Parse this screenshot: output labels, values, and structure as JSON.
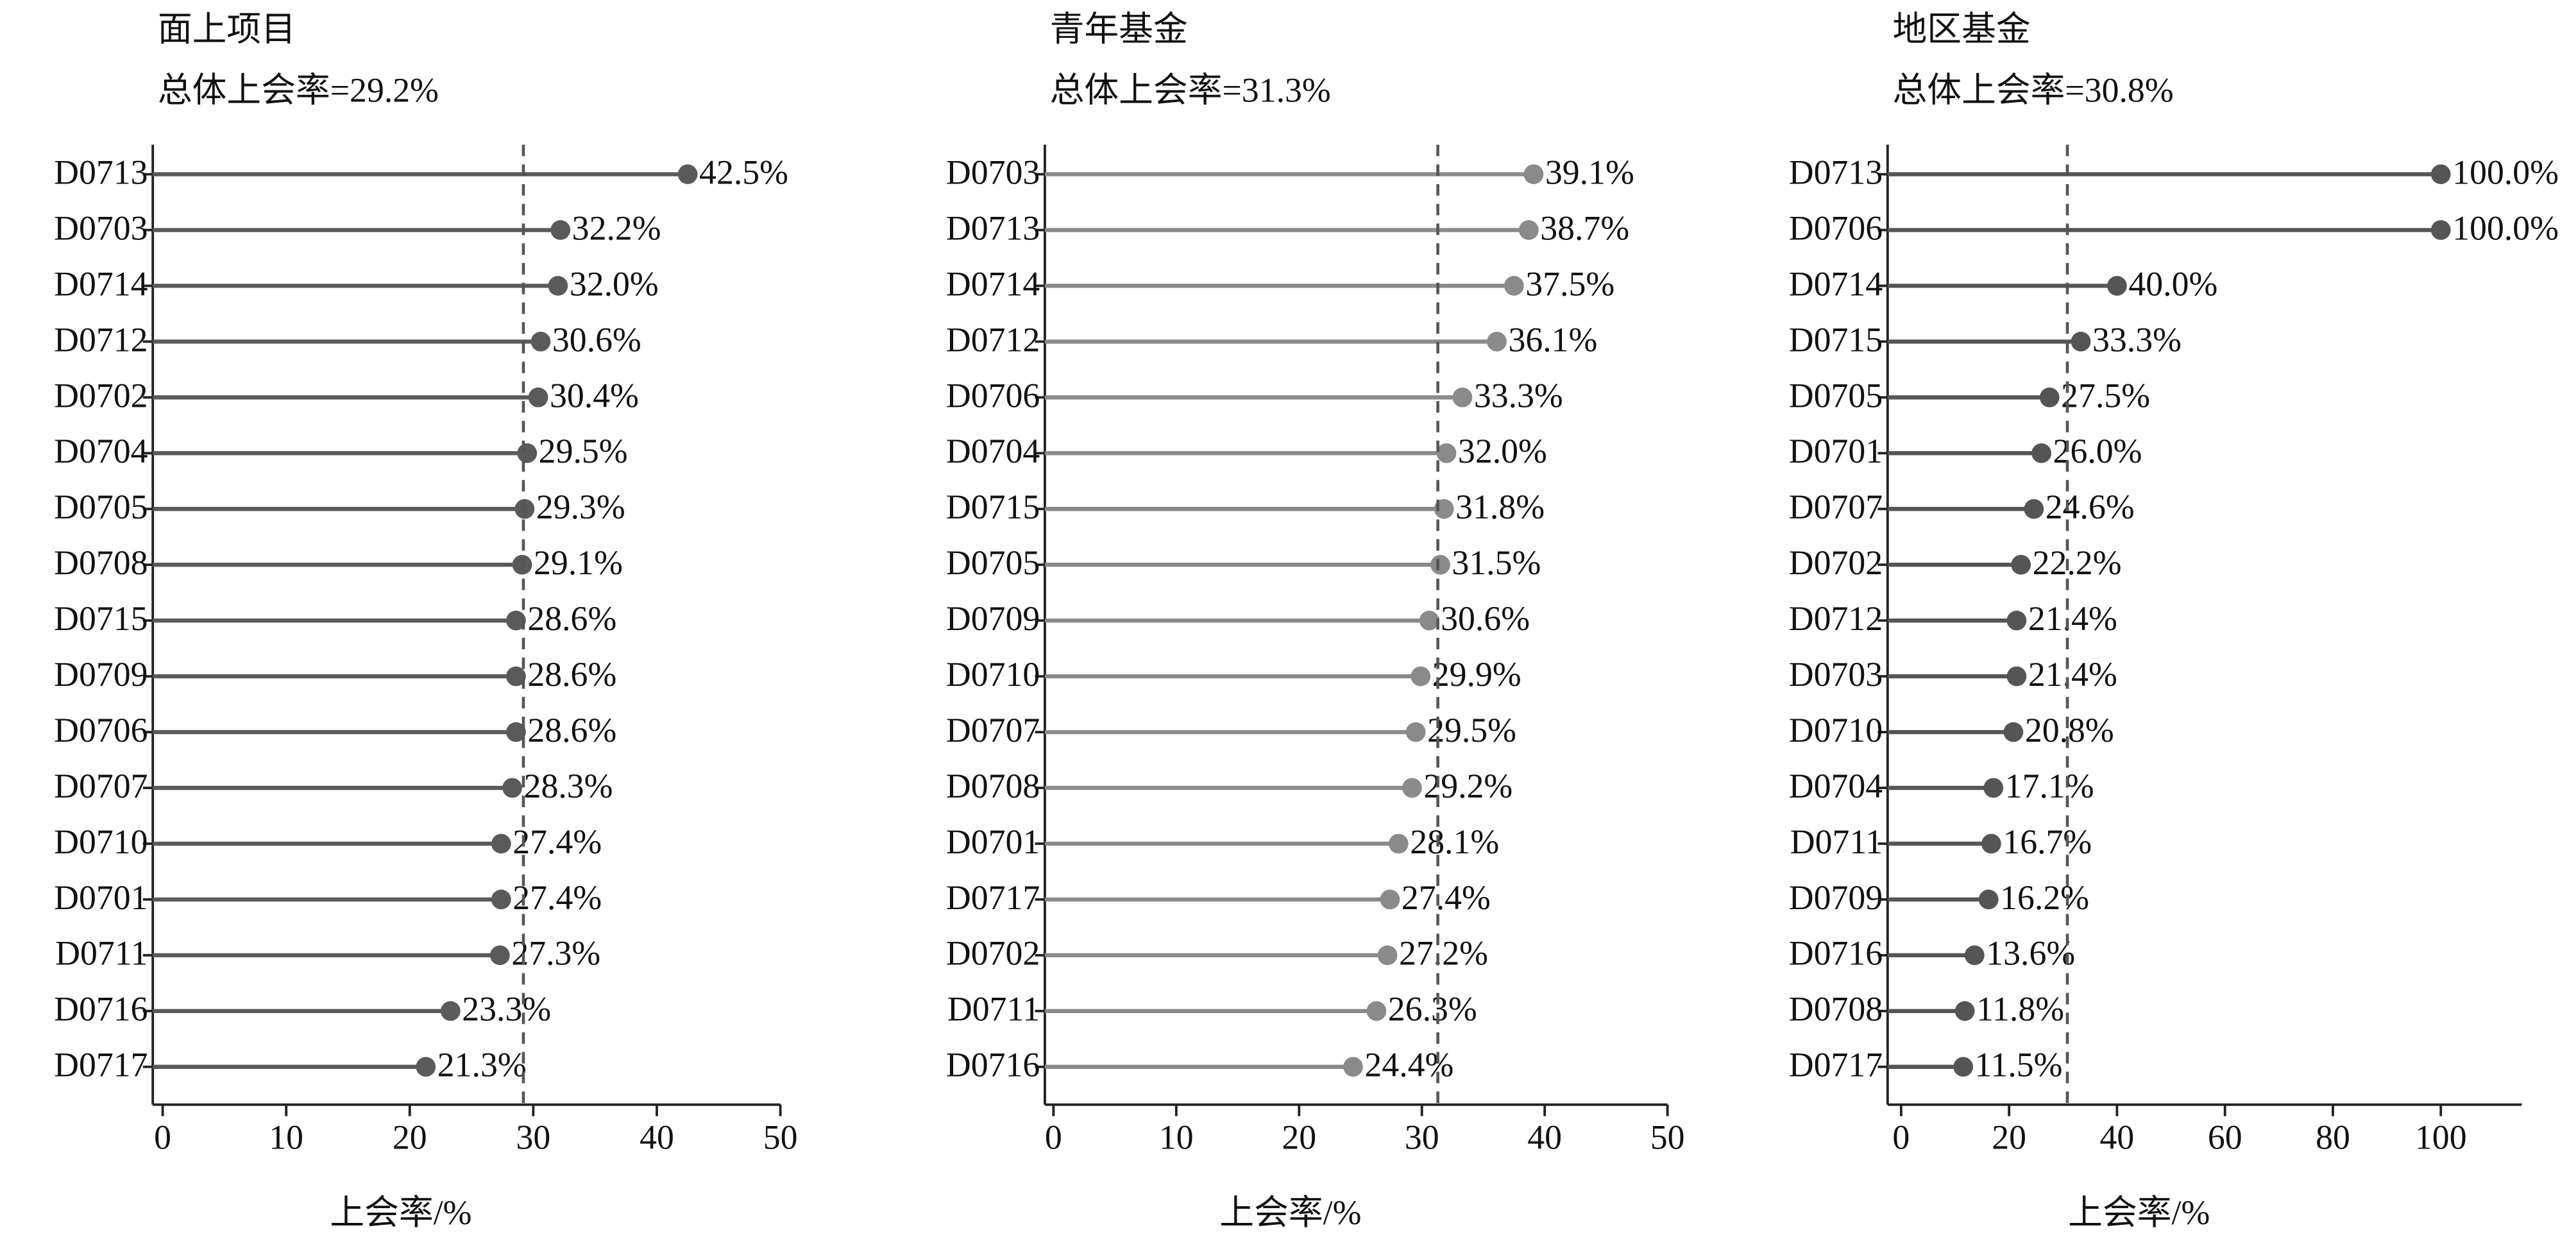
{
  "chart_data": [
    {
      "type": "lollipop",
      "title": "面上项目",
      "subtitle": "总体上会率=29.2%",
      "reference": 29.2,
      "categories": [
        "D0713",
        "D0703",
        "D0714",
        "D0712",
        "D0702",
        "D0704",
        "D0705",
        "D0708",
        "D0715",
        "D0709",
        "D0706",
        "D0707",
        "D0710",
        "D0701",
        "D0711",
        "D0716",
        "D0717"
      ],
      "values": [
        42.5,
        32.2,
        32.0,
        30.6,
        30.4,
        29.5,
        29.3,
        29.1,
        28.6,
        28.6,
        28.6,
        28.3,
        27.4,
        27.4,
        27.3,
        23.3,
        21.3
      ],
      "value_labels": [
        "42.5%",
        "32.2%",
        "32.0%",
        "30.6%",
        "30.4%",
        "29.5%",
        "29.3%",
        "29.1%",
        "28.6%",
        "28.6%",
        "28.6%",
        "28.3%",
        "27.4%",
        "27.4%",
        "27.3%",
        "23.3%",
        "21.3%"
      ],
      "color": "#5a5a5a",
      "xlabel": "上会率/%",
      "xlim": [
        -0.8,
        50
      ],
      "xticks": [
        0,
        10,
        20,
        30,
        40,
        50
      ]
    },
    {
      "type": "lollipop",
      "title": "青年基金",
      "subtitle": "总体上会率=31.3%",
      "reference": 31.3,
      "categories": [
        "D0703",
        "D0713",
        "D0714",
        "D0712",
        "D0706",
        "D0704",
        "D0715",
        "D0705",
        "D0709",
        "D0710",
        "D0707",
        "D0708",
        "D0701",
        "D0717",
        "D0702",
        "D0711",
        "D0716"
      ],
      "values": [
        39.1,
        38.7,
        37.5,
        36.1,
        33.3,
        32.0,
        31.8,
        31.5,
        30.6,
        29.9,
        29.5,
        29.2,
        28.1,
        27.4,
        27.2,
        26.3,
        24.4
      ],
      "value_labels": [
        "39.1%",
        "38.7%",
        "37.5%",
        "36.1%",
        "33.3%",
        "32.0%",
        "31.8%",
        "31.5%",
        "30.6%",
        "29.9%",
        "29.5%",
        "29.2%",
        "28.1%",
        "27.4%",
        "27.2%",
        "26.3%",
        "24.4%"
      ],
      "color": "#8a8a8a",
      "xlabel": "上会率/%",
      "xlim": [
        -0.7,
        50
      ],
      "xticks": [
        0,
        10,
        20,
        30,
        40,
        50
      ]
    },
    {
      "type": "lollipop",
      "title": "地区基金",
      "subtitle": "总体上会率=30.8%",
      "reference": 30.8,
      "categories": [
        "D0713",
        "D0706",
        "D0714",
        "D0715",
        "D0705",
        "D0701",
        "D0707",
        "D0702",
        "D0712",
        "D0703",
        "D0710",
        "D0704",
        "D0711",
        "D0709",
        "D0716",
        "D0708",
        "D0717"
      ],
      "values": [
        100,
        100,
        40,
        33.3,
        27.5,
        26.0,
        24.6,
        22.2,
        21.4,
        21.4,
        20.8,
        17.1,
        16.7,
        16.2,
        13.6,
        11.8,
        11.5
      ],
      "value_labels": [
        "100.0%",
        "100.0%",
        "40.0%",
        "33.3%",
        "27.5%",
        "26.0%",
        "24.6%",
        "22.2%",
        "21.4%",
        "21.4%",
        "20.8%",
        "17.1%",
        "16.7%",
        "16.2%",
        "13.6%",
        "11.8%",
        "11.5%"
      ],
      "color": "#555555",
      "xlabel": "上会率/%",
      "xlim": [
        -2.5,
        115
      ],
      "xticks": [
        0,
        20,
        40,
        60,
        80,
        100
      ]
    }
  ]
}
